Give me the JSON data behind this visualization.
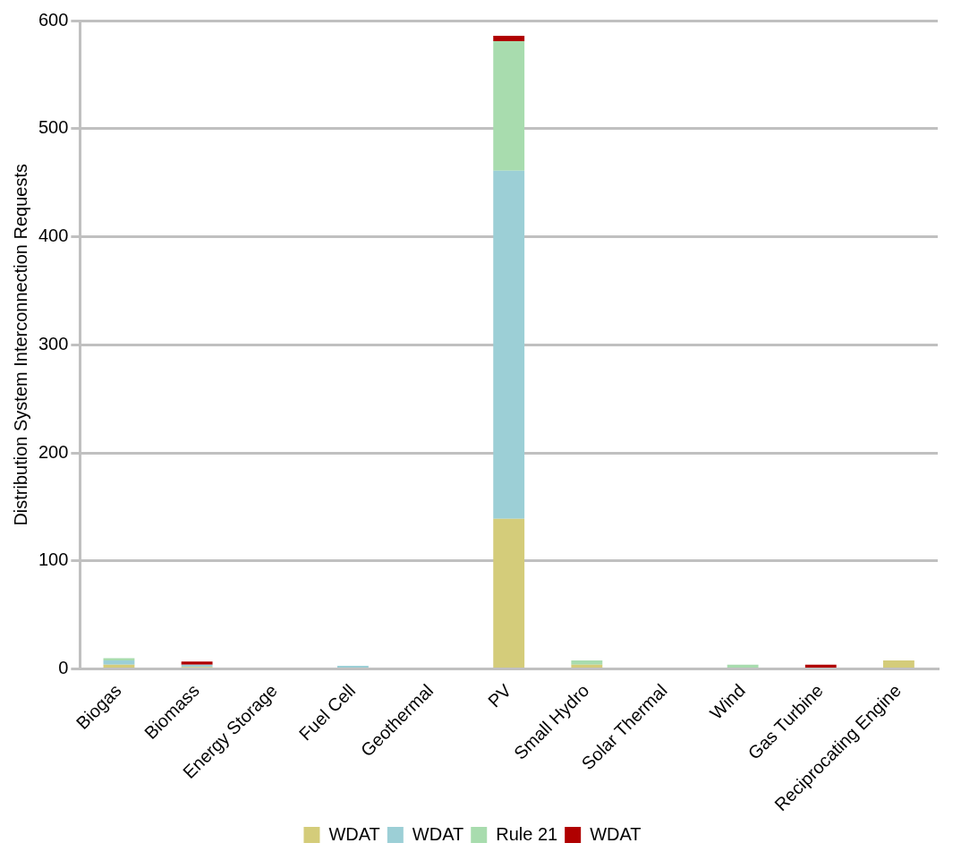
{
  "chart_data": {
    "type": "bar",
    "ylabel": "Distribution System Interconnection Requests",
    "categories": [
      "Biogas",
      "Biomass",
      "Energy Storage",
      "Fuel Cell",
      "Geothermal",
      "PV",
      "Small Hydro",
      "Solar Thermal",
      "Wind",
      "Gas Turbine",
      "Reciprocating Engine"
    ],
    "series": [
      {
        "name": "WDAT",
        "color": "#d4cc7a",
        "values": [
          4,
          2,
          0,
          0,
          0,
          139,
          4,
          null,
          0,
          0,
          8
        ]
      },
      {
        "name": "WDAT",
        "color": "#9ccfd6",
        "values": [
          4,
          2,
          null,
          3,
          null,
          322,
          0,
          0,
          null,
          null,
          0
        ]
      },
      {
        "name": "Rule 21",
        "color": "#a8dcae",
        "values": [
          2,
          0,
          0,
          0,
          0,
          120,
          4,
          0,
          4,
          0,
          0
        ]
      },
      {
        "name": "WDAT",
        "color": "#b00000",
        "values": [
          0,
          3,
          0,
          0,
          0,
          5,
          0,
          0,
          0,
          4,
          0
        ]
      }
    ],
    "stacked": true,
    "ylim": [
      0,
      600
    ],
    "yticks": [
      0,
      100,
      200,
      300,
      400,
      500,
      600
    ],
    "grid": "y",
    "legend": "bottom"
  }
}
